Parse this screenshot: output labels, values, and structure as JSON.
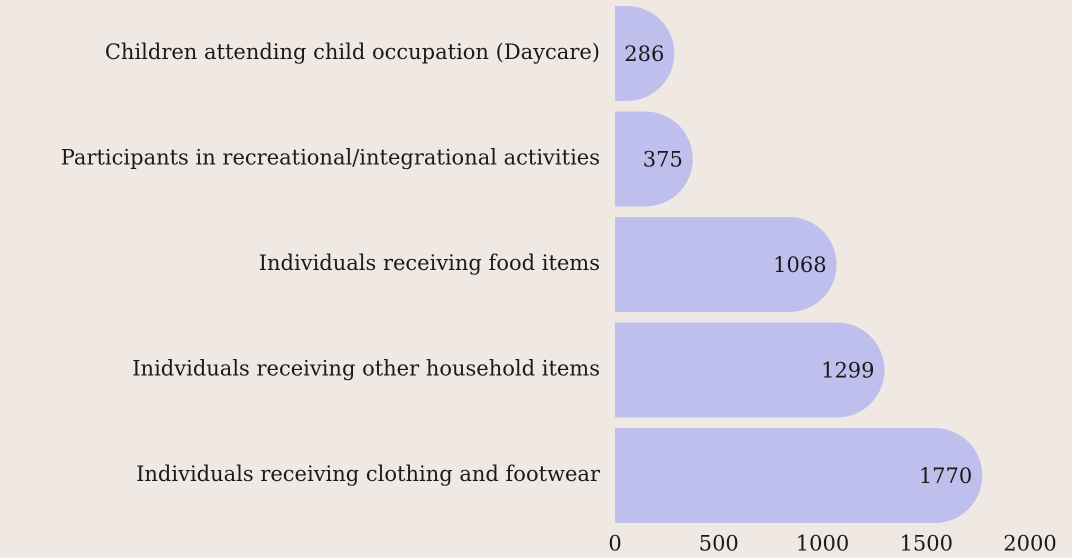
{
  "chart_data": {
    "type": "bar",
    "orientation": "horizontal",
    "categories": [
      "Children attending child occupation (Daycare)",
      "Participants in recreational/integrational activities",
      "Individuals receiving food items",
      "Inidviduals receiving other household items",
      "Individuals receiving clothing and footwear"
    ],
    "values": [
      286,
      375,
      1068,
      1299,
      1770
    ],
    "color": "#bfbfee",
    "xlim": [
      0,
      2000
    ],
    "xticks": [
      0,
      500,
      1000,
      1500,
      2000
    ],
    "grid": false
  }
}
